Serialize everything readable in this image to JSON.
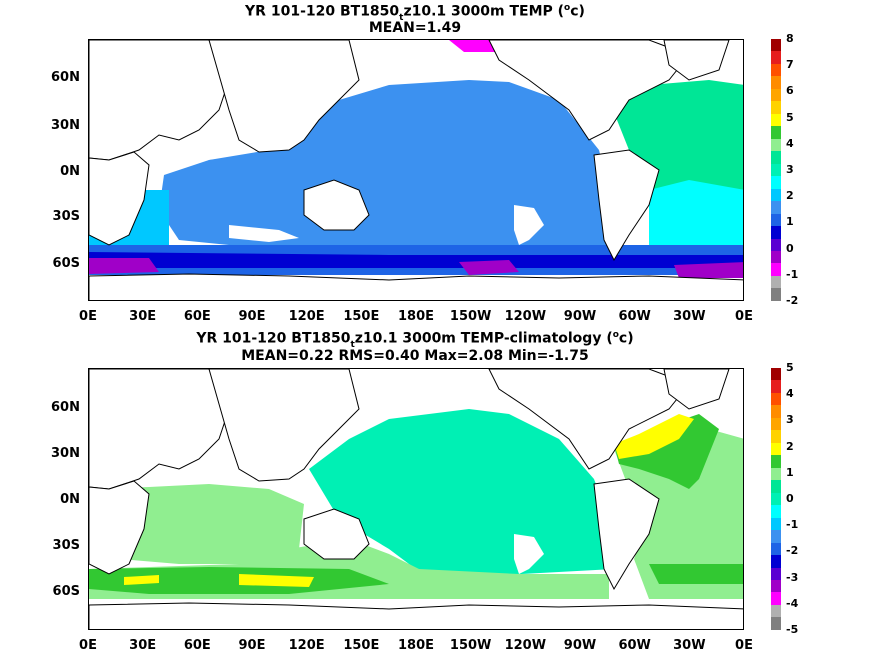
{
  "panels": [
    {
      "title_parts": [
        "YR 101-120 BT1850",
        "t",
        "z10.1 3000m TEMP (",
        "o",
        "c)"
      ],
      "subtitle": "MEAN=1.49",
      "colorbar_labels": [
        "8",
        "7",
        "6",
        "5",
        "4",
        "3",
        "2",
        "1",
        "0",
        "-1",
        "-2"
      ]
    },
    {
      "title_parts": [
        "YR 101-120 BT1850",
        "t",
        "z10.1 3000m TEMP-climatology (",
        "o",
        "c)"
      ],
      "subtitle": "MEAN=0.22   RMS=0.40   Max=2.08   Min=-1.75",
      "colorbar_labels": [
        "5",
        "4",
        "3",
        "2",
        "1",
        "0",
        "-1",
        "-2",
        "-3",
        "-4",
        "-5"
      ]
    }
  ],
  "lat_labels": [
    "60N",
    "30N",
    "0N",
    "30S",
    "60S"
  ],
  "lon_labels": [
    "0E",
    "30E",
    "60E",
    "90E",
    "120E",
    "150E",
    "180E",
    "150W",
    "120W",
    "90W",
    "60W",
    "30W",
    "0E"
  ],
  "colorbar_colors": [
    "#808080",
    "#b0b0b0",
    "#ff00ff",
    "#a000c8",
    "#5a00d2",
    "#0000d2",
    "#1e64e6",
    "#3c91f0",
    "#00c8ff",
    "#00ffff",
    "#00f0b4",
    "#00e696",
    "#90ee90",
    "#32c832",
    "#ffff00",
    "#ffd200",
    "#ffa500",
    "#ff8c00",
    "#ff5000",
    "#e61e1e",
    "#a00000"
  ]
}
